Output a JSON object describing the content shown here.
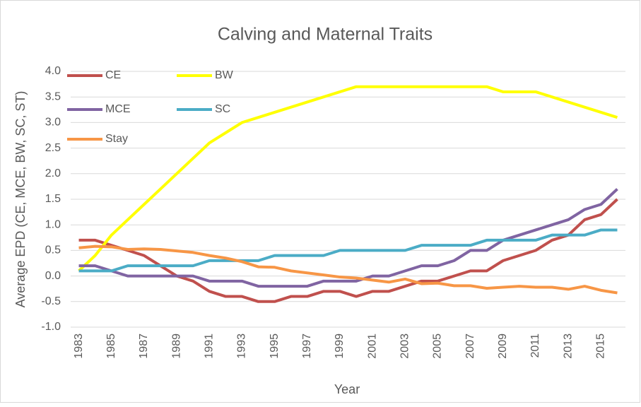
{
  "chart_data": {
    "type": "line",
    "title": "Calving and Maternal Traits",
    "x_label": "Year",
    "y_label": "Average EPD (CE, MCE, BW, SC, ST)",
    "categories": [
      "1983",
      null,
      "1985",
      null,
      "1987",
      null,
      "1989",
      null,
      "1991",
      null,
      "1993",
      null,
      "1995",
      null,
      "1997",
      null,
      "1999",
      null,
      "2001",
      null,
      "2003",
      null,
      "2005",
      null,
      "2007",
      null,
      "2009",
      null,
      "2011",
      null,
      "2013",
      null,
      "2015",
      null
    ],
    "series": [
      {
        "name": "CE",
        "color": "#c0504d",
        "values": [
          0.7,
          0.7,
          0.6,
          0.5,
          0.4,
          0.2,
          0,
          -0.1,
          -0.3,
          -0.4,
          -0.4,
          -0.5,
          -0.5,
          -0.4,
          -0.4,
          -0.3,
          -0.3,
          -0.4,
          -0.3,
          -0.3,
          -0.2,
          -0.1,
          -0.1,
          0,
          0.1,
          0.1,
          0.3,
          0.4,
          0.5,
          0.7,
          0.8,
          1.1,
          1.2,
          1.5
        ]
      },
      {
        "name": "BW",
        "color": "#ffff00",
        "values": [
          0.1,
          0.4,
          0.8,
          1.1,
          1.4,
          1.7,
          2.0,
          2.3,
          2.6,
          2.8,
          3.0,
          3.1,
          3.2,
          3.3,
          3.4,
          3.5,
          3.6,
          3.7,
          3.7,
          3.7,
          3.7,
          3.7,
          3.7,
          3.7,
          3.7,
          3.7,
          3.6,
          3.6,
          3.6,
          3.5,
          3.4,
          3.3,
          3.2,
          3.1
        ]
      },
      {
        "name": "MCE",
        "color": "#8064a2",
        "values": [
          0.2,
          0.2,
          0.1,
          0,
          0,
          0,
          0,
          0,
          -0.1,
          -0.1,
          -0.1,
          -0.2,
          -0.2,
          -0.2,
          -0.2,
          -0.1,
          -0.1,
          -0.1,
          0,
          0,
          0.1,
          0.2,
          0.2,
          0.3,
          0.5,
          0.5,
          0.7,
          0.8,
          0.9,
          1.0,
          1.1,
          1.3,
          1.4,
          1.7
        ]
      },
      {
        "name": "SC",
        "color": "#4bacc6",
        "values": [
          0.1,
          0.1,
          0.1,
          0.2,
          0.2,
          0.2,
          0.2,
          0.2,
          0.3,
          0.3,
          0.3,
          0.3,
          0.4,
          0.4,
          0.4,
          0.4,
          0.5,
          0.5,
          0.5,
          0.5,
          0.5,
          0.6,
          0.6,
          0.6,
          0.6,
          0.7,
          0.7,
          0.7,
          0.7,
          0.8,
          0.8,
          0.8,
          0.9,
          0.9
        ]
      },
      {
        "name": "Stay",
        "color": "#f79646",
        "values": [
          0.55,
          0.58,
          0.57,
          0.52,
          0.53,
          0.52,
          0.49,
          0.46,
          0.4,
          0.35,
          0.28,
          0.18,
          0.17,
          0.1,
          0.06,
          0.02,
          -0.02,
          -0.04,
          -0.08,
          -0.12,
          -0.06,
          -0.15,
          -0.14,
          -0.19,
          -0.19,
          -0.24,
          -0.22,
          -0.2,
          -0.22,
          -0.22,
          -0.26,
          -0.2,
          -0.28,
          -0.33
        ]
      }
    ],
    "ylim": [
      -1.0,
      4.0
    ],
    "yticks": [
      {
        "value": -1.0,
        "label": "-1.0"
      },
      {
        "value": -0.5,
        "label": "-0.5"
      },
      {
        "value": 0,
        "label": "0.0"
      },
      {
        "value": 0.5,
        "label": "0.5"
      },
      {
        "value": 1.0,
        "label": "1.0"
      },
      {
        "value": 1.5,
        "label": "1.5"
      },
      {
        "value": 2.0,
        "label": "2.0"
      },
      {
        "value": 2.5,
        "label": "2.5"
      },
      {
        "value": 3.0,
        "label": "3.0"
      },
      {
        "value": 3.5,
        "label": "3.5"
      },
      {
        "value": 4.0,
        "label": "4.0"
      }
    ],
    "grid": true,
    "legend": "top-left"
  }
}
